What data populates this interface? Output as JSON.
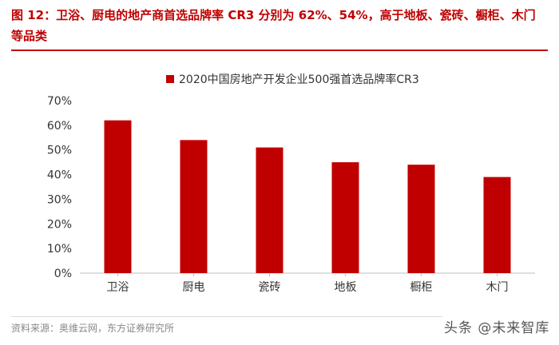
{
  "header": {
    "title": "图 12：卫浴、厨电的地产商首选品牌率 CR3 分别为 62%、54%，高于地板、瓷砖、橱柜、木门等品类"
  },
  "source": "资料来源：奥维云网，东方证券研究所",
  "watermark": "头条 @未来智库",
  "colors": {
    "bar": "#c00000",
    "title": "#c00000"
  },
  "chart_data": {
    "type": "bar",
    "title": "",
    "legend": "2020中国房地产开发企业500强首选品牌率CR3",
    "legend_position": "top-center",
    "categories": [
      "卫浴",
      "厨电",
      "瓷砖",
      "地板",
      "橱柜",
      "木门"
    ],
    "series": [
      {
        "name": "2020中国房地产开发企业500强首选品牌率CR3",
        "values": [
          62,
          54,
          51,
          45,
          44,
          39
        ]
      }
    ],
    "y_ticks": [
      "0%",
      "10%",
      "20%",
      "30%",
      "40%",
      "50%",
      "60%",
      "70%"
    ],
    "ylim": [
      0,
      70
    ],
    "xlabel": "",
    "ylabel": "",
    "grid": false
  }
}
